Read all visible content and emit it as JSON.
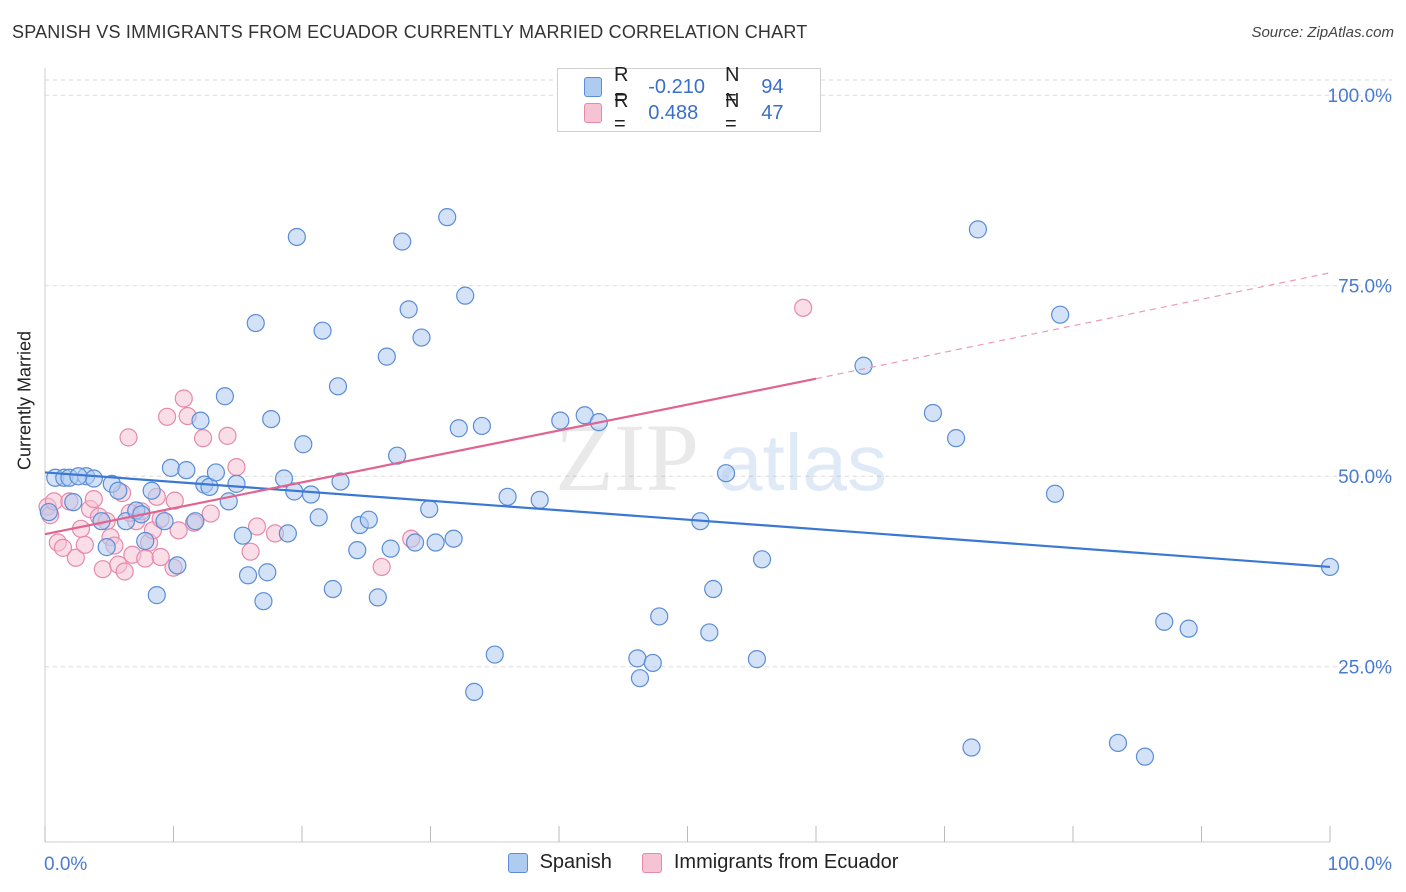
{
  "header": {
    "title": "SPANISH VS IMMIGRANTS FROM ECUADOR CURRENTLY MARRIED CORRELATION CHART",
    "source": "Source: ZipAtlas.com"
  },
  "legend": {
    "rows": [
      {
        "r_label": "R =",
        "r_value": "-0.210",
        "n_label": "N =",
        "n_value": "94",
        "color": "#aecbf0",
        "border": "#5b8dd6"
      },
      {
        "r_label": "R =",
        "r_value": "0.488",
        "n_label": "N =",
        "n_value": "47",
        "color": "#f6c3d4",
        "border": "#e58aab"
      }
    ]
  },
  "bottom_legend": {
    "items": [
      {
        "label": "Spanish",
        "color": "#aecbf0",
        "border": "#5b8dd6"
      },
      {
        "label": "Immigrants from Ecuador",
        "color": "#f6c3d4",
        "border": "#e58aab"
      }
    ]
  },
  "watermark": {
    "part1": "ZIP",
    "part2": "atlas"
  },
  "chart_data": {
    "type": "scatter",
    "title": "SPANISH VS IMMIGRANTS FROM ECUADOR CURRENTLY MARRIED CORRELATION CHART",
    "xlabel": "",
    "ylabel": "Currently Married",
    "xlim": [
      0,
      100
    ],
    "ylim": [
      2,
      102
    ],
    "x_tick_labels": [
      "0.0%",
      "100.0%"
    ],
    "y_ticks": [
      25,
      50,
      75,
      100
    ],
    "y_tick_labels": [
      "25.0%",
      "50.0%",
      "75.0%",
      "100.0%"
    ],
    "grid": true,
    "legend_position": "top-center",
    "colors": {
      "spanish": "#3a78d4",
      "ecuador": "#e0648f"
    },
    "series": [
      {
        "name": "Spanish",
        "r": -0.21,
        "n": 94,
        "trend": {
          "x": [
            0,
            100
          ],
          "y": [
            50.5,
            38.1
          ]
        },
        "points": [
          [
            0.3,
            45.3
          ],
          [
            0.8,
            49.8
          ],
          [
            1.5,
            49.8
          ],
          [
            1.9,
            49.8
          ],
          [
            2.2,
            46.6
          ],
          [
            3.2,
            50.0
          ],
          [
            3.8,
            49.7
          ],
          [
            4.4,
            44.1
          ],
          [
            4.8,
            40.7
          ],
          [
            5.2,
            49.0
          ],
          [
            5.7,
            48.1
          ],
          [
            6.3,
            44.1
          ],
          [
            7.1,
            45.5
          ],
          [
            7.5,
            45.0
          ],
          [
            7.8,
            41.5
          ],
          [
            8.3,
            48.1
          ],
          [
            8.7,
            34.4
          ],
          [
            9.3,
            44.1
          ],
          [
            9.8,
            51.1
          ],
          [
            10.3,
            38.3
          ],
          [
            11.0,
            50.8
          ],
          [
            11.7,
            44.1
          ],
          [
            12.1,
            57.3
          ],
          [
            12.4,
            48.9
          ],
          [
            12.8,
            48.6
          ],
          [
            13.3,
            50.5
          ],
          [
            14.0,
            60.5
          ],
          [
            14.3,
            46.7
          ],
          [
            14.9,
            49.0
          ],
          [
            15.4,
            42.2
          ],
          [
            15.8,
            37.0
          ],
          [
            16.4,
            70.1
          ],
          [
            17.0,
            33.6
          ],
          [
            17.3,
            37.4
          ],
          [
            17.6,
            57.5
          ],
          [
            18.6,
            49.7
          ],
          [
            18.9,
            42.5
          ],
          [
            19.4,
            48.0
          ],
          [
            19.6,
            81.4
          ],
          [
            20.1,
            54.2
          ],
          [
            20.7,
            47.6
          ],
          [
            21.3,
            44.6
          ],
          [
            21.6,
            69.1
          ],
          [
            22.4,
            35.2
          ],
          [
            22.8,
            61.8
          ],
          [
            23.0,
            49.3
          ],
          [
            24.3,
            40.3
          ],
          [
            24.5,
            43.6
          ],
          [
            25.2,
            44.3
          ],
          [
            25.9,
            34.1
          ],
          [
            26.6,
            65.7
          ],
          [
            26.9,
            40.5
          ],
          [
            27.4,
            52.7
          ],
          [
            27.8,
            80.8
          ],
          [
            28.3,
            71.9
          ],
          [
            28.8,
            41.3
          ],
          [
            29.3,
            68.2
          ],
          [
            29.9,
            45.7
          ],
          [
            30.4,
            41.3
          ],
          [
            31.3,
            84.0
          ],
          [
            31.8,
            41.8
          ],
          [
            32.2,
            56.3
          ],
          [
            32.7,
            73.7
          ],
          [
            33.4,
            21.7
          ],
          [
            34.0,
            56.6
          ],
          [
            35.0,
            26.6
          ],
          [
            36.0,
            47.3
          ],
          [
            38.5,
            46.9
          ],
          [
            40.1,
            57.3
          ],
          [
            42.0,
            58.0
          ],
          [
            43.1,
            57.1
          ],
          [
            46.1,
            26.1
          ],
          [
            46.3,
            23.5
          ],
          [
            47.3,
            25.5
          ],
          [
            47.8,
            31.6
          ],
          [
            51.0,
            44.1
          ],
          [
            51.7,
            29.5
          ],
          [
            52.0,
            35.2
          ],
          [
            53.0,
            50.4
          ],
          [
            55.4,
            26.0
          ],
          [
            55.8,
            39.1
          ],
          [
            63.7,
            64.5
          ],
          [
            69.1,
            58.3
          ],
          [
            70.9,
            55.0
          ],
          [
            72.1,
            14.4
          ],
          [
            72.6,
            82.4
          ],
          [
            78.6,
            47.7
          ],
          [
            79.0,
            71.2
          ],
          [
            83.5,
            15.0
          ],
          [
            85.6,
            13.2
          ],
          [
            87.1,
            30.9
          ],
          [
            89.0,
            30.0
          ],
          [
            100.0,
            38.1
          ],
          [
            2.6,
            50.0
          ]
        ]
      },
      {
        "name": "Immigrants from Ecuador",
        "r": 0.488,
        "n": 47,
        "trend": {
          "x": [
            0,
            60
          ],
          "y": [
            42.4,
            62.8
          ]
        },
        "trend_dashed": {
          "x": [
            60,
            100
          ],
          "y": [
            62.8,
            76.7
          ]
        },
        "points": [
          [
            0.2,
            46.0
          ],
          [
            0.4,
            44.9
          ],
          [
            0.7,
            46.7
          ],
          [
            1.0,
            41.3
          ],
          [
            1.4,
            40.6
          ],
          [
            1.9,
            46.7
          ],
          [
            2.4,
            39.3
          ],
          [
            2.8,
            43.1
          ],
          [
            3.1,
            41.0
          ],
          [
            3.5,
            45.7
          ],
          [
            3.8,
            47.0
          ],
          [
            4.2,
            44.7
          ],
          [
            4.5,
            37.8
          ],
          [
            4.8,
            44.1
          ],
          [
            5.1,
            42.0
          ],
          [
            5.4,
            40.9
          ],
          [
            5.7,
            38.4
          ],
          [
            6.0,
            47.8
          ],
          [
            6.2,
            37.5
          ],
          [
            6.5,
            55.1
          ],
          [
            6.8,
            39.7
          ],
          [
            7.1,
            44.1
          ],
          [
            7.5,
            45.4
          ],
          [
            7.8,
            39.2
          ],
          [
            8.1,
            41.3
          ],
          [
            8.4,
            42.9
          ],
          [
            8.7,
            47.3
          ],
          [
            9.0,
            44.4
          ],
          [
            9.5,
            57.8
          ],
          [
            10.0,
            38.0
          ],
          [
            10.4,
            42.9
          ],
          [
            10.8,
            60.2
          ],
          [
            11.1,
            57.9
          ],
          [
            11.6,
            43.9
          ],
          [
            12.3,
            55.0
          ],
          [
            12.9,
            45.1
          ],
          [
            14.2,
            55.3
          ],
          [
            14.9,
            51.2
          ],
          [
            16.0,
            40.1
          ],
          [
            16.5,
            43.4
          ],
          [
            17.9,
            42.5
          ],
          [
            26.2,
            38.1
          ],
          [
            28.5,
            41.8
          ],
          [
            59.0,
            72.1
          ],
          [
            9.0,
            39.4
          ],
          [
            6.6,
            45.2
          ],
          [
            10.1,
            46.8
          ]
        ]
      }
    ]
  }
}
